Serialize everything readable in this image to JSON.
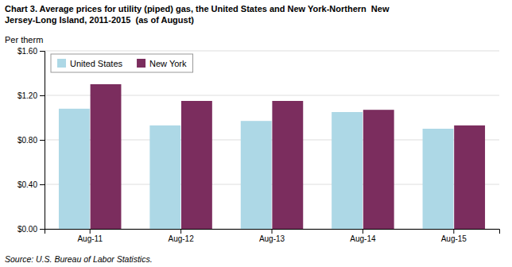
{
  "chart_data": {
    "type": "bar",
    "title": "Chart 3. Average prices for utility (piped) gas, the United States and New York-Northern  New\nJersey-Long Island, 2011-2015  (as of August)",
    "ylabel": "Per therm",
    "source": "Source: U.S. Bureau of Labor Statistics.",
    "categories": [
      "Aug-11",
      "Aug-12",
      "Aug-13",
      "Aug-14",
      "Aug-15"
    ],
    "series": [
      {
        "name": "United States",
        "color": "#ADD8E6",
        "values": [
          1.08,
          0.93,
          0.97,
          1.05,
          0.9
        ]
      },
      {
        "name": "New York",
        "color": "#7B2D5E",
        "values": [
          1.3,
          1.15,
          1.15,
          1.07,
          0.93
        ]
      }
    ],
    "ylim": [
      0.0,
      1.6
    ],
    "yticks": [
      {
        "value": 0.0,
        "label": "$0.00"
      },
      {
        "value": 0.4,
        "label": "$0.40"
      },
      {
        "value": 0.8,
        "label": "$0.80"
      },
      {
        "value": 1.2,
        "label": "$1.20"
      },
      {
        "value": 1.6,
        "label": "$1.60"
      }
    ],
    "grid": true,
    "legend": "upper left"
  }
}
